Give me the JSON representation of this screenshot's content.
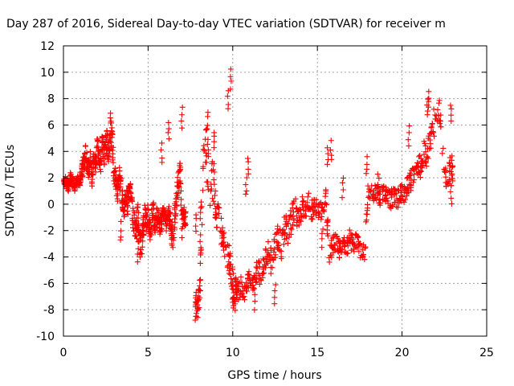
{
  "chart_data": {
    "type": "scatter",
    "title": "Day 287 of 2016, Sidereal Day-to-day VTEC variation (SDTVAR) for receiver m",
    "xlabel": "GPS time / hours",
    "ylabel": "SDTVAR / TECUs",
    "xlim": [
      0,
      25
    ],
    "ylim": [
      -10,
      12
    ],
    "xticks": [
      0,
      5,
      10,
      15,
      20,
      25
    ],
    "yticks": [
      -10,
      -8,
      -6,
      -4,
      -2,
      0,
      2,
      4,
      6,
      8,
      10,
      12
    ],
    "grid": true,
    "marker": "+",
    "series": [
      {
        "name": "SDTVAR",
        "color": "#ff0000",
        "x": [
          0.0,
          0.1,
          0.2,
          0.3,
          0.4,
          0.5,
          0.6,
          0.7,
          0.8,
          0.9,
          1.0,
          1.1,
          1.2,
          1.3,
          1.4,
          1.5,
          1.6,
          1.7,
          1.8,
          1.9,
          2.0,
          2.1,
          2.2,
          2.3,
          2.4,
          2.5,
          2.6,
          2.7,
          2.8,
          2.9,
          3.0,
          3.1,
          3.2,
          3.3,
          3.4,
          3.5,
          3.6,
          3.7,
          3.8,
          3.9,
          4.0,
          4.1,
          4.2,
          4.3,
          4.4,
          4.5,
          4.6,
          4.7,
          4.8,
          4.9,
          5.0,
          5.1,
          5.2,
          5.3,
          5.4,
          5.5,
          5.6,
          5.7,
          5.8,
          5.9,
          6.0,
          6.1,
          6.2,
          6.3,
          6.4,
          6.5,
          6.6,
          6.7,
          6.8,
          6.9,
          7.0,
          7.1,
          7.2,
          7.8,
          7.9,
          8.0,
          8.1,
          8.3,
          8.5,
          8.7,
          8.9,
          9.0,
          9.2,
          9.4,
          9.6,
          9.8,
          9.9,
          10.0,
          10.1,
          10.2,
          10.3,
          10.5,
          10.7,
          10.9,
          11.1,
          11.3,
          11.5,
          11.7,
          11.9,
          12.1,
          12.3,
          12.5,
          12.7,
          12.9,
          13.1,
          13.3,
          13.5,
          13.7,
          13.9,
          14.1,
          14.3,
          14.5,
          14.7,
          14.9,
          15.1,
          15.3,
          15.5,
          15.7,
          15.9,
          16.1,
          16.3,
          16.5,
          16.7,
          16.9,
          17.1,
          17.3,
          17.5,
          17.8,
          18.0,
          18.3,
          18.5,
          18.7,
          18.9,
          19.1,
          19.3,
          19.5,
          19.7,
          19.9,
          20.1,
          20.3,
          20.5,
          20.7,
          20.9,
          21.1,
          21.3,
          21.5,
          21.7,
          21.9,
          22.2,
          22.5,
          22.7,
          22.9
        ],
        "y": [
          1.5,
          1.8,
          1.6,
          1.4,
          1.9,
          1.7,
          1.5,
          1.2,
          2.0,
          1.6,
          1.9,
          2.5,
          3.2,
          3.8,
          3.0,
          2.6,
          3.4,
          2.1,
          3.9,
          2.8,
          4.3,
          3.5,
          2.9,
          4.8,
          3.7,
          5.2,
          4.5,
          3.9,
          5.6,
          4.2,
          2.4,
          1.7,
          0.9,
          2.2,
          1.5,
          0.3,
          -0.5,
          0.8,
          -0.2,
          1.4,
          0.5,
          -0.9,
          -1.4,
          -2.0,
          -1.1,
          -2.7,
          -3.3,
          -1.9,
          -0.6,
          -1.5,
          -0.8,
          -2.1,
          -1.3,
          -0.4,
          -1.7,
          -1.0,
          -0.6,
          -1.8,
          -1.2,
          -0.5,
          -0.9,
          -1.6,
          -0.7,
          -1.2,
          -2.2,
          -2.6,
          -0.4,
          0.6,
          1.9,
          2.6,
          -1.5,
          -0.8,
          -1.1,
          -7.5,
          -8.2,
          -6.9,
          -4.8,
          4.5,
          3.2,
          1.5,
          1.8,
          -0.8,
          -1.6,
          -2.3,
          -3.5,
          -4.2,
          -5.1,
          -6.3,
          -7.0,
          -6.5,
          -6.8,
          -6.1,
          -6.6,
          -5.7,
          -6.2,
          -5.4,
          -4.8,
          -5.9,
          -4.1,
          -3.6,
          -4.5,
          -3.0,
          -2.4,
          -3.3,
          -1.6,
          -2.2,
          -1.0,
          -0.4,
          -1.3,
          -0.2,
          -0.8,
          0.1,
          -0.5,
          -0.3,
          -0.9,
          -0.1,
          0.5,
          -3.8,
          -3.2,
          -2.7,
          -3.5,
          -2.9,
          -3.4,
          -2.6,
          -3.1,
          -2.8,
          -3.3,
          -3.6,
          1.2,
          0.6,
          1.1,
          0.4,
          0.9,
          0.8,
          0.3,
          0.7,
          0.2,
          0.9,
          0.5,
          1.3,
          1.7,
          2.3,
          3.1,
          2.8,
          4.1,
          3.6,
          5.4,
          6.3,
          7.4,
          2.3,
          1.9,
          2.4
        ],
        "spread": [
          0.4,
          0.5,
          0.5,
          0.4,
          0.6,
          0.5,
          0.4,
          0.4,
          0.5,
          0.5,
          0.6,
          0.8,
          0.9,
          0.9,
          0.8,
          0.8,
          0.9,
          0.8,
          1.0,
          0.9,
          1.0,
          1.0,
          0.9,
          1.0,
          0.9,
          1.2,
          1.1,
          1.0,
          1.3,
          1.1,
          0.9,
          0.9,
          0.8,
          0.9,
          0.9,
          0.8,
          0.8,
          0.9,
          0.9,
          0.9,
          1.0,
          1.0,
          1.1,
          1.3,
          1.1,
          1.4,
          1.4,
          1.2,
          1.0,
          1.0,
          0.9,
          1.0,
          0.9,
          0.8,
          0.9,
          0.8,
          0.8,
          0.8,
          0.8,
          0.7,
          0.7,
          0.8,
          0.8,
          0.8,
          1.0,
          1.1,
          1.0,
          1.1,
          1.1,
          1.2,
          0.8,
          0.8,
          0.8,
          1.2,
          1.0,
          1.5,
          1.5,
          2.5,
          2.2,
          2.0,
          1.5,
          1.5,
          1.2,
          1.2,
          1.3,
          1.3,
          1.4,
          1.5,
          1.6,
          1.0,
          0.8,
          0.8,
          0.8,
          0.8,
          0.9,
          0.8,
          0.9,
          1.0,
          1.0,
          1.1,
          1.1,
          1.1,
          1.2,
          1.2,
          1.2,
          1.2,
          1.1,
          1.0,
          1.0,
          1.0,
          0.9,
          1.0,
          0.9,
          0.9,
          0.9,
          0.9,
          0.9,
          0.8,
          0.8,
          0.8,
          0.8,
          0.8,
          0.8,
          0.8,
          0.7,
          0.7,
          0.8,
          0.8,
          0.8,
          0.8,
          0.8,
          0.8,
          0.8,
          0.8,
          0.8,
          0.8,
          0.8,
          0.8,
          0.8,
          0.9,
          0.9,
          0.8,
          0.9,
          1.0,
          1.1,
          1.1,
          1.5,
          1.1,
          0.9,
          1.0,
          1.5,
          1.5
        ],
        "excursions": [
          {
            "x": 9.9,
            "y": 10.2
          },
          {
            "x": 9.7,
            "y": 8.6
          },
          {
            "x": 8.9,
            "y": 5.5
          },
          {
            "x": 8.5,
            "y": 7.0
          },
          {
            "x": 7.0,
            "y": 7.2
          },
          {
            "x": 6.2,
            "y": 6.3
          },
          {
            "x": 2.8,
            "y": 7.0
          },
          {
            "x": 5.8,
            "y": 4.5
          },
          {
            "x": 8.1,
            "y": 0.2
          },
          {
            "x": 10.9,
            "y": 3.6
          },
          {
            "x": 10.8,
            "y": 2.0
          },
          {
            "x": 15.6,
            "y": 4.4
          },
          {
            "x": 15.8,
            "y": 4.7
          },
          {
            "x": 16.5,
            "y": 2.0
          },
          {
            "x": 17.9,
            "y": 3.6
          },
          {
            "x": 18.6,
            "y": 2.3
          },
          {
            "x": 20.4,
            "y": 5.8
          },
          {
            "x": 21.6,
            "y": 8.6
          },
          {
            "x": 21.5,
            "y": 8.0
          },
          {
            "x": 22.9,
            "y": 7.6
          },
          {
            "x": 22.9,
            "y": 1.3
          },
          {
            "x": 7.8,
            "y": -8.8
          },
          {
            "x": 8.1,
            "y": -3.8
          },
          {
            "x": 11.3,
            "y": -7.9
          },
          {
            "x": 12.5,
            "y": -7.5
          },
          {
            "x": 15.3,
            "y": -3.2
          },
          {
            "x": 4.4,
            "y": -4.3
          },
          {
            "x": 3.4,
            "y": -2.8
          },
          {
            "x": 7.8,
            "y": -2.1
          }
        ]
      }
    ]
  }
}
